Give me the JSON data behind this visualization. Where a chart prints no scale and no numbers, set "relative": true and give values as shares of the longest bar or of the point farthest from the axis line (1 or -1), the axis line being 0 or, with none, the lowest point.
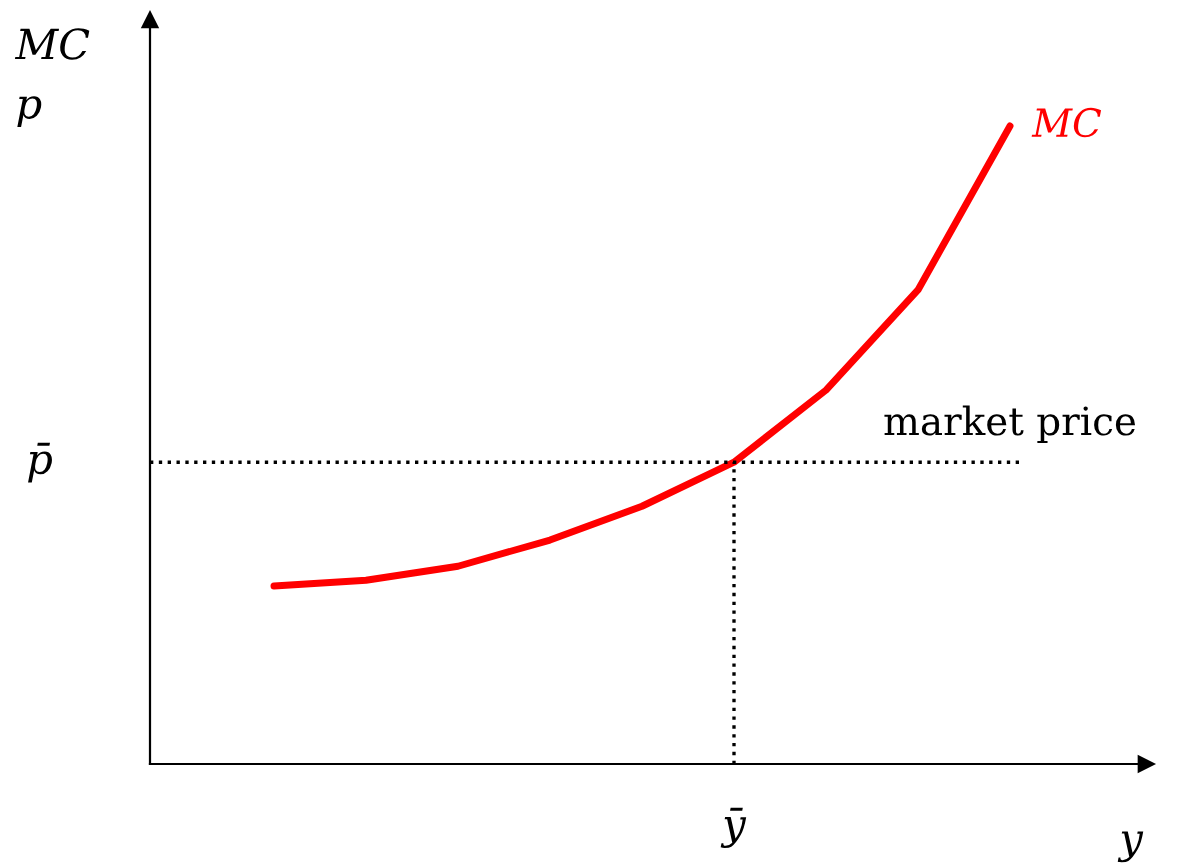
{
  "chart_data": {
    "type": "line",
    "relative": true,
    "xlabel": "y",
    "ylabel": "MC\np",
    "categories": [
      null,
      null,
      null,
      null,
      null,
      null,
      null,
      null,
      null
    ],
    "series": [
      {
        "name": "MC",
        "color": "#ff0000",
        "values": [
          0.279,
          0.288,
          0.31,
          0.351,
          0.404,
          0.473,
          0.586,
          0.743,
          1.0
        ]
      }
    ],
    "ref_lines": [
      {
        "axis": "y",
        "value": 0.473,
        "label": "market price",
        "line_style": "dotted",
        "color": "#000000"
      }
    ],
    "annotations": [
      "p̄",
      "ȳ"
    ],
    "legend": false,
    "line_style": "solid",
    "marker": "none"
  }
}
